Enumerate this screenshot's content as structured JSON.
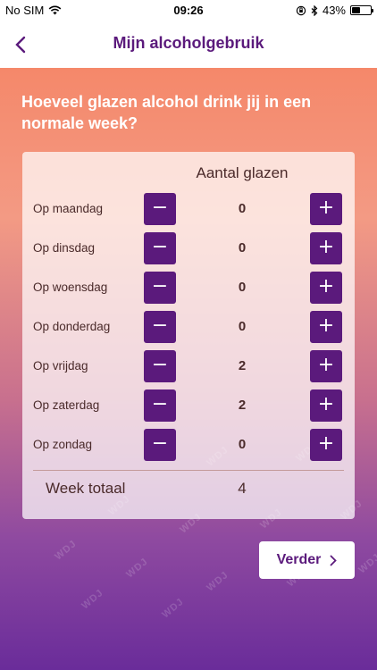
{
  "status_bar": {
    "carrier": "No SIM",
    "time": "09:26",
    "battery": "43%",
    "battery_level": 0.43
  },
  "nav": {
    "back_icon": "chevron-left-icon",
    "title": "Mijn alcoholgebruik"
  },
  "question": "Hoeveel glazen alcohol drink jij in een normale week?",
  "table": {
    "column_header": "Aantal glazen",
    "minus_symbol": "−",
    "plus_symbol": "+",
    "rows": [
      {
        "label": "Op maandag",
        "value": "0"
      },
      {
        "label": "Op dinsdag",
        "value": "0"
      },
      {
        "label": "Op woensdag",
        "value": "0"
      },
      {
        "label": "Op donderdag",
        "value": "0"
      },
      {
        "label": "Op vrijdag",
        "value": "2"
      },
      {
        "label": "Op zaterdag",
        "value": "2"
      },
      {
        "label": "Op zondag",
        "value": "0"
      }
    ],
    "total_label": "Week totaal",
    "total_value": "4"
  },
  "watermark": "WDJ",
  "next_button": {
    "label": "Verder",
    "icon": "chevron-right-icon"
  },
  "colors": {
    "accent": "#5b1a7c",
    "gradient_top": "#f5886a",
    "gradient_bottom": "#6a2c9a"
  }
}
